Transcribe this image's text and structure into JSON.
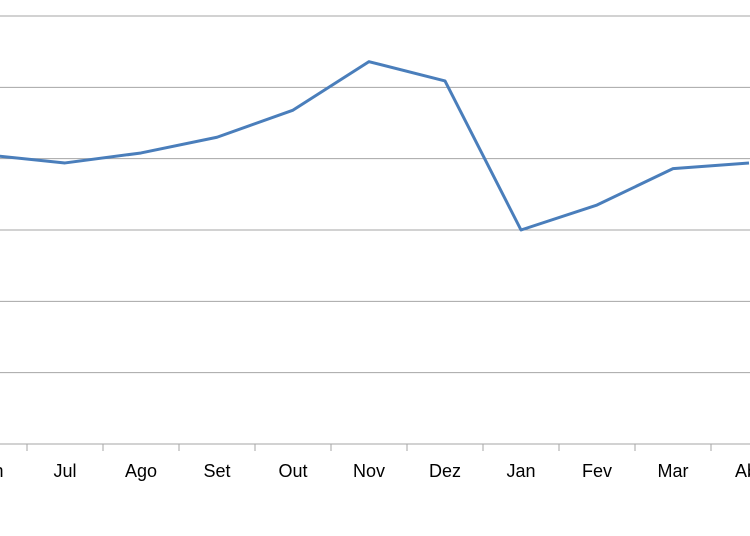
{
  "chart_data": {
    "type": "line",
    "categories": [
      "Jun",
      "Jul",
      "Ago",
      "Set",
      "Out",
      "Nov",
      "Dez",
      "Jan",
      "Fev",
      "Mar",
      "Abr"
    ],
    "values": [
      4.05,
      3.94,
      4.08,
      4.3,
      4.68,
      5.36,
      5.09,
      3.0,
      3.35,
      3.86,
      3.94
    ],
    "color": "#4a7ebb",
    "ylim": [
      0,
      6
    ],
    "yticks": [
      0,
      1,
      2,
      3,
      4,
      5,
      6
    ],
    "grid": true
  }
}
